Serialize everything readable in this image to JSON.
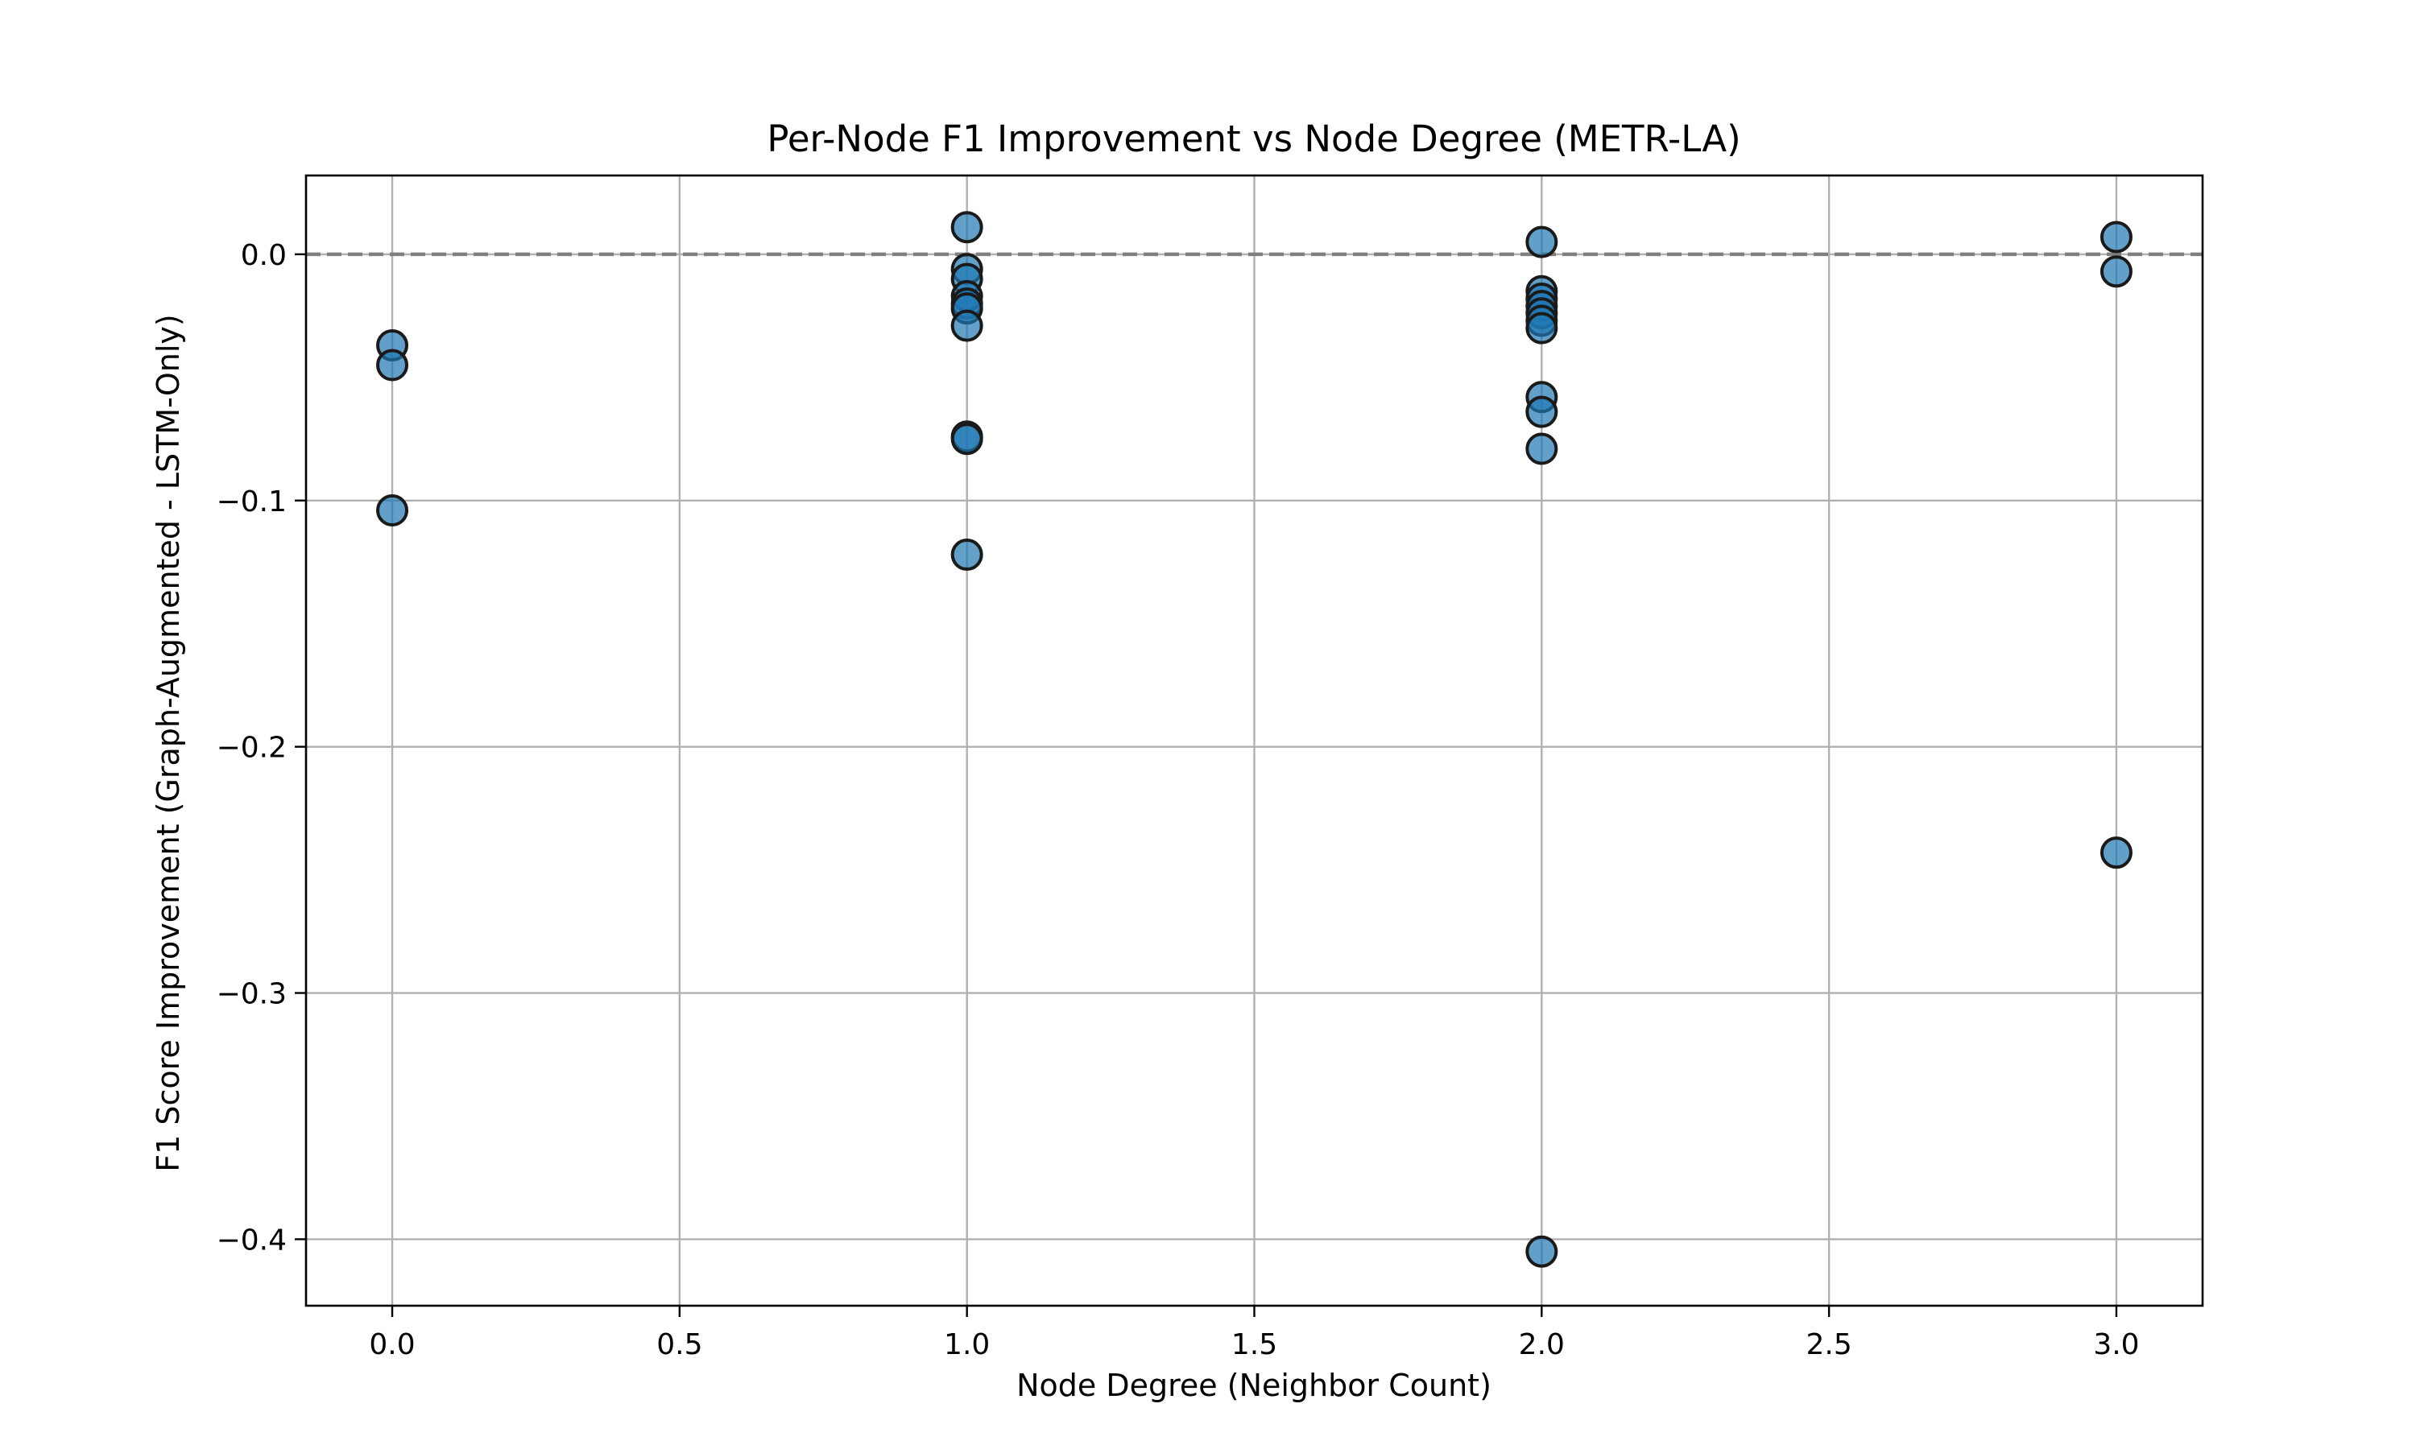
{
  "chart_data": {
    "type": "scatter",
    "title": "Per-Node F1 Improvement vs Node Degree (METR-LA)",
    "xlabel": "Node Degree (Neighbor Count)",
    "ylabel": "F1 Score Improvement (Graph-Augmented - LSTM-Only)",
    "xlim": [
      -0.15,
      3.15
    ],
    "ylim": [
      -0.427,
      0.032
    ],
    "xticks": [
      0.0,
      0.5,
      1.0,
      1.5,
      2.0,
      2.5,
      3.0
    ],
    "xtick_labels": [
      "0.0",
      "0.5",
      "1.0",
      "1.5",
      "2.0",
      "2.5",
      "3.0"
    ],
    "yticks": [
      0.0,
      -0.1,
      -0.2,
      -0.3,
      -0.4
    ],
    "ytick_labels": [
      "0.0",
      "−0.1",
      "−0.2",
      "−0.3",
      "−0.4"
    ],
    "grid": true,
    "reference_line_y": 0.0,
    "marker_color": "#1f77b4",
    "points": [
      {
        "x": 0,
        "y": -0.037
      },
      {
        "x": 0,
        "y": -0.045
      },
      {
        "x": 0,
        "y": -0.104
      },
      {
        "x": 1,
        "y": 0.011
      },
      {
        "x": 1,
        "y": -0.006
      },
      {
        "x": 1,
        "y": -0.01
      },
      {
        "x": 1,
        "y": -0.017
      },
      {
        "x": 1,
        "y": -0.02
      },
      {
        "x": 1,
        "y": -0.022
      },
      {
        "x": 1,
        "y": -0.029
      },
      {
        "x": 1,
        "y": -0.074
      },
      {
        "x": 1,
        "y": -0.075
      },
      {
        "x": 1,
        "y": -0.122
      },
      {
        "x": 2,
        "y": 0.005
      },
      {
        "x": 2,
        "y": -0.015
      },
      {
        "x": 2,
        "y": -0.018
      },
      {
        "x": 2,
        "y": -0.021
      },
      {
        "x": 2,
        "y": -0.024
      },
      {
        "x": 2,
        "y": -0.027
      },
      {
        "x": 2,
        "y": -0.03
      },
      {
        "x": 2,
        "y": -0.058
      },
      {
        "x": 2,
        "y": -0.064
      },
      {
        "x": 2,
        "y": -0.079
      },
      {
        "x": 2,
        "y": -0.405
      },
      {
        "x": 3,
        "y": 0.007
      },
      {
        "x": 3,
        "y": -0.007
      },
      {
        "x": 3,
        "y": -0.243
      }
    ]
  }
}
